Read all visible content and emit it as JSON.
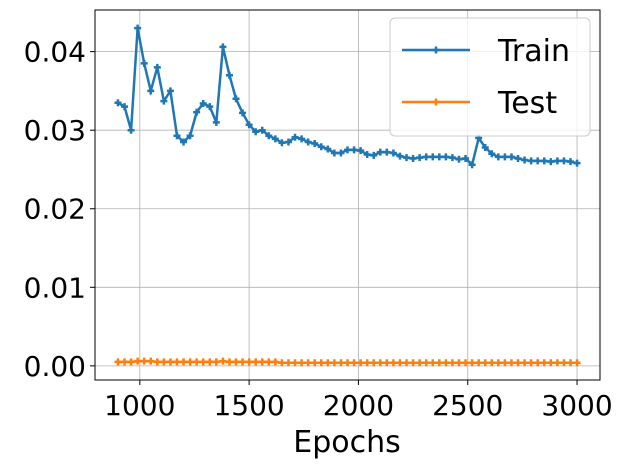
{
  "chart_data": {
    "type": "line",
    "x_label": "Epochs",
    "x": [
      900,
      930,
      960,
      990,
      1020,
      1050,
      1080,
      1110,
      1140,
      1170,
      1200,
      1230,
      1260,
      1290,
      1320,
      1350,
      1380,
      1410,
      1440,
      1470,
      1500,
      1530,
      1560,
      1590,
      1620,
      1650,
      1680,
      1710,
      1740,
      1770,
      1800,
      1830,
      1860,
      1890,
      1920,
      1950,
      1980,
      2010,
      2040,
      2070,
      2100,
      2130,
      2160,
      2190,
      2220,
      2250,
      2280,
      2310,
      2340,
      2370,
      2400,
      2430,
      2460,
      2490,
      2520,
      2550,
      2580,
      2610,
      2640,
      2670,
      2700,
      2730,
      2760,
      2790,
      2820,
      2850,
      2880,
      2910,
      2940,
      2970,
      3000
    ],
    "series": [
      {
        "name": "Train",
        "color": "#1f77b4",
        "values": [
          0.0335,
          0.033,
          0.03,
          0.043,
          0.0385,
          0.035,
          0.038,
          0.0337,
          0.035,
          0.0293,
          0.0285,
          0.0293,
          0.0323,
          0.0334,
          0.033,
          0.031,
          0.0406,
          0.037,
          0.034,
          0.0322,
          0.0307,
          0.0298,
          0.03,
          0.0293,
          0.0289,
          0.0284,
          0.0285,
          0.0291,
          0.0289,
          0.0285,
          0.0283,
          0.0279,
          0.0276,
          0.0271,
          0.0271,
          0.0275,
          0.0275,
          0.0274,
          0.0269,
          0.0268,
          0.0272,
          0.0272,
          0.0271,
          0.0267,
          0.0265,
          0.0264,
          0.0265,
          0.0266,
          0.0266,
          0.0266,
          0.0266,
          0.0265,
          0.0263,
          0.0264,
          0.0256,
          0.029,
          0.0278,
          0.027,
          0.0266,
          0.0266,
          0.0266,
          0.0264,
          0.0262,
          0.0261,
          0.0261,
          0.0261,
          0.026,
          0.0261,
          0.0261,
          0.026,
          0.0258
        ]
      },
      {
        "name": "Test",
        "color": "#ff7f0e",
        "values": [
          0.0005,
          0.0005,
          0.0005,
          0.0006,
          0.0006,
          0.0006,
          0.0005,
          0.0005,
          0.0005,
          0.0005,
          0.0005,
          0.0005,
          0.0005,
          0.0005,
          0.0005,
          0.0005,
          0.0006,
          0.0005,
          0.0005,
          0.0005,
          0.0005,
          0.0005,
          0.0005,
          0.0005,
          0.0005,
          0.0004,
          0.0004,
          0.0004,
          0.0004,
          0.0004,
          0.0004,
          0.0004,
          0.0004,
          0.0004,
          0.0004,
          0.0004,
          0.0004,
          0.0004,
          0.0004,
          0.0004,
          0.0004,
          0.0004,
          0.0004,
          0.0004,
          0.0004,
          0.0004,
          0.0004,
          0.0004,
          0.0004,
          0.0004,
          0.0004,
          0.0004,
          0.0004,
          0.0004,
          0.0004,
          0.0004,
          0.0004,
          0.0004,
          0.0004,
          0.0004,
          0.0004,
          0.0004,
          0.0004,
          0.0004,
          0.0004,
          0.0004,
          0.0004,
          0.0004,
          0.0004,
          0.0004,
          0.0004
        ]
      }
    ],
    "xlim": [
      795,
      3105
    ],
    "ylim": [
      -0.0018,
      0.0453
    ],
    "xticks": [
      1000,
      1500,
      2000,
      2500,
      3000
    ],
    "yticks": [
      {
        "value": 0,
        "label": "0.00"
      },
      {
        "value": 0.01,
        "label": "0.01"
      },
      {
        "value": 0.02,
        "label": "0.02"
      },
      {
        "value": 0.03,
        "label": "0.03"
      },
      {
        "value": 0.04,
        "label": "0.04"
      }
    ],
    "grid": true,
    "legend": "upper right"
  }
}
